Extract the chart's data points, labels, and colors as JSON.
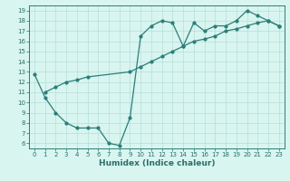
{
  "line1_x": [
    0,
    1,
    2,
    3,
    4,
    5,
    6,
    7,
    8,
    9,
    10,
    11,
    12,
    13,
    14,
    15,
    16,
    17,
    18,
    19,
    20,
    21,
    22,
    23
  ],
  "line1_y": [
    12.8,
    10.5,
    9.0,
    8.0,
    7.5,
    7.5,
    7.5,
    6.0,
    5.8,
    8.5,
    16.5,
    17.5,
    18.0,
    17.8,
    15.5,
    17.8,
    17.0,
    17.5,
    17.5,
    18.0,
    19.0,
    18.5,
    18.0,
    17.5
  ],
  "line2_x": [
    1,
    2,
    3,
    4,
    5,
    9,
    10,
    11,
    12,
    13,
    14,
    15,
    16,
    17,
    18,
    19,
    20,
    21,
    22,
    23
  ],
  "line2_y": [
    11.0,
    11.5,
    12.0,
    12.2,
    12.5,
    13.0,
    13.5,
    14.0,
    14.5,
    15.0,
    15.5,
    16.0,
    16.2,
    16.5,
    17.0,
    17.2,
    17.5,
    17.8,
    18.0,
    17.5
  ],
  "line_color": "#2d7d78",
  "bg_color": "#d8f5f0",
  "grid_color": "#b8deda",
  "xlabel": "Humidex (Indice chaleur)",
  "xlim": [
    -0.5,
    23.5
  ],
  "ylim": [
    5.5,
    19.5
  ],
  "yticks": [
    6,
    7,
    8,
    9,
    10,
    11,
    12,
    13,
    14,
    15,
    16,
    17,
    18,
    19
  ],
  "xticks": [
    0,
    1,
    2,
    3,
    4,
    5,
    6,
    7,
    8,
    9,
    10,
    11,
    12,
    13,
    14,
    15,
    16,
    17,
    18,
    19,
    20,
    21,
    22,
    23
  ],
  "marker_size": 2.0,
  "linewidth": 0.9,
  "tick_fontsize": 5.0,
  "xlabel_fontsize": 6.5,
  "title_color": "#2d6e6a"
}
